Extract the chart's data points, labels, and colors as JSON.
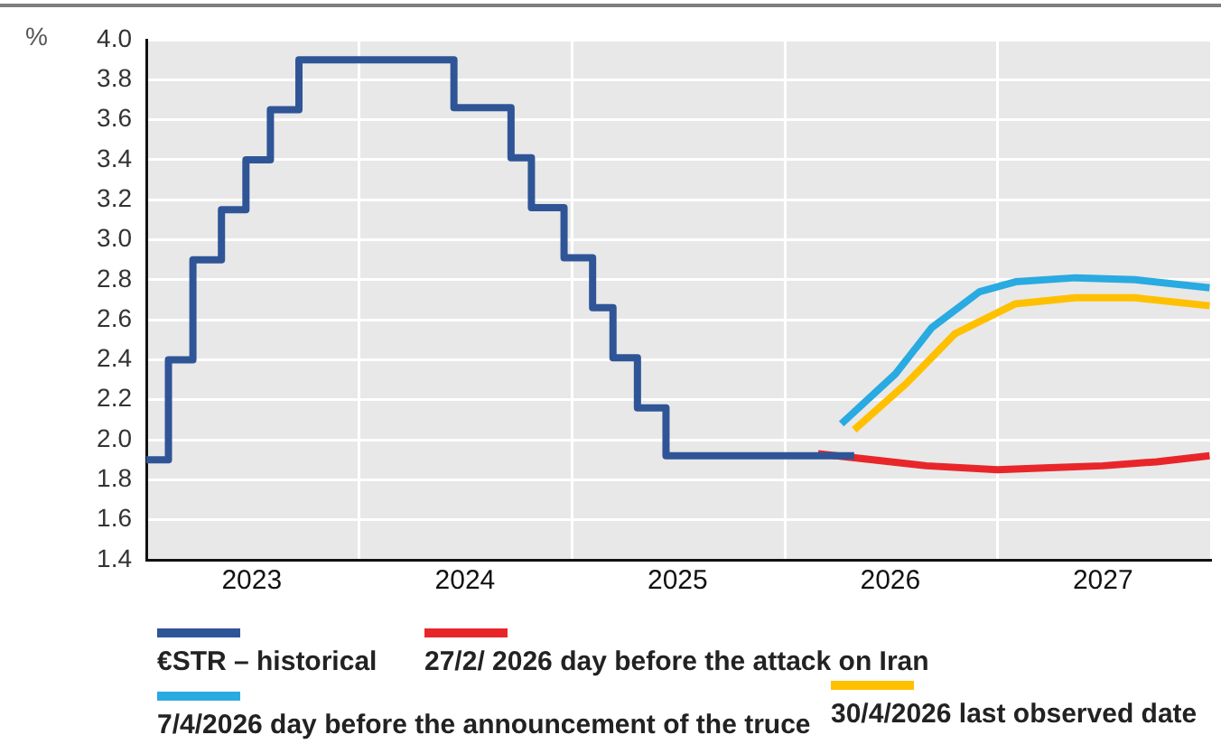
{
  "chart_data": {
    "type": "line",
    "ylabel": "%",
    "ylim": [
      1.4,
      4.0
    ],
    "yticks": [
      1.4,
      1.6,
      1.8,
      {
        "value": 2,
        "label": "2.0"
      },
      2.2,
      2.4,
      2.6,
      2.8,
      {
        "value": 3,
        "label": "3.0"
      },
      3.2,
      3.4,
      3.6,
      3.8,
      {
        "value": 4,
        "label": "4.0"
      }
    ],
    "xlim": [
      "2023-01-01",
      "2028-01-01"
    ],
    "xticks": [
      {
        "value": "2023-07-01",
        "label": "2023"
      },
      {
        "value": "2024-01-01",
        "label": null
      },
      {
        "value": "2024-07-01",
        "label": "2024"
      },
      {
        "value": "2025-01-01",
        "label": null
      },
      {
        "value": "2025-07-01",
        "label": "2025"
      },
      {
        "value": "2026-01-01",
        "label": null
      },
      {
        "value": "2026-07-01",
        "label": "2026"
      },
      {
        "value": "2027-01-01",
        "label": null
      },
      {
        "value": "2027-07-01",
        "label": "2027"
      }
    ],
    "grid": true,
    "legend": "bottom",
    "marker": "none",
    "series": [
      {
        "name": "€STR – historical",
        "type": "step",
        "color": "#2f5597",
        "x": [
          "2023-01-01",
          "2023-02-08",
          "2023-03-22",
          "2023-05-10",
          "2023-06-21",
          "2023-08-02",
          "2023-09-20",
          "2024-06-12",
          "2024-09-18",
          "2024-10-23",
          "2024-12-18",
          "2025-02-05",
          "2025-03-12",
          "2025-04-23",
          "2025-06-11",
          "2026-04-30"
        ],
        "values": [
          1.9,
          2.4,
          2.9,
          3.15,
          3.4,
          3.65,
          3.9,
          3.66,
          3.41,
          3.16,
          2.91,
          2.66,
          2.41,
          2.16,
          1.92,
          1.92
        ]
      },
      {
        "name": "27/2/ 2026 day before the attack on Iran",
        "type": "line",
        "color": "#e8262a",
        "x": [
          "2026-02-27",
          "2026-06-01",
          "2026-09-01",
          "2027-01-01",
          "2027-04-01",
          "2027-07-01",
          "2027-10-01",
          "2027-12-31"
        ],
        "values": [
          1.93,
          1.9,
          1.87,
          1.85,
          1.86,
          1.87,
          1.89,
          1.92
        ]
      },
      {
        "name": "7/4/2026 day before the announcement of the truce",
        "type": "line",
        "color": "#29aae1",
        "x": [
          "2026-04-08",
          "2026-07-10",
          "2026-09-10",
          "2026-12-01",
          "2027-02-01",
          "2027-05-15",
          "2027-08-25",
          "2027-12-31"
        ],
        "values": [
          2.08,
          2.33,
          2.56,
          2.74,
          2.79,
          2.81,
          2.8,
          2.76
        ]
      },
      {
        "name": "30/4/2026 last observed date",
        "type": "line",
        "color": "#ffc000",
        "x": [
          "2026-04-30",
          "2026-07-28",
          "2026-10-20",
          "2027-02-01",
          "2027-05-15",
          "2027-08-25",
          "2027-12-31"
        ],
        "values": [
          2.05,
          2.28,
          2.53,
          2.68,
          2.71,
          2.71,
          2.67
        ]
      }
    ]
  }
}
